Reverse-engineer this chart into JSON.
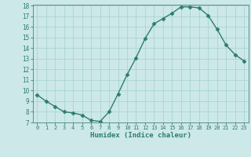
{
  "x": [
    0,
    1,
    2,
    3,
    4,
    5,
    6,
    7,
    8,
    9,
    10,
    11,
    12,
    13,
    14,
    15,
    16,
    17,
    18,
    19,
    20,
    21,
    22,
    23
  ],
  "y": [
    9.6,
    9.0,
    8.5,
    8.0,
    7.9,
    7.7,
    7.2,
    7.1,
    8.0,
    9.7,
    11.5,
    13.1,
    14.9,
    16.3,
    16.8,
    17.3,
    17.9,
    17.9,
    17.8,
    17.1,
    15.8,
    14.3,
    13.4,
    12.8
  ],
  "xlabel": "Humidex (Indice chaleur)",
  "ylim": [
    7,
    18
  ],
  "xlim": [
    -0.5,
    23.5
  ],
  "yticks": [
    7,
    8,
    9,
    10,
    11,
    12,
    13,
    14,
    15,
    16,
    17,
    18
  ],
  "xticks": [
    0,
    1,
    2,
    3,
    4,
    5,
    6,
    7,
    8,
    9,
    10,
    11,
    12,
    13,
    14,
    15,
    16,
    17,
    18,
    19,
    20,
    21,
    22,
    23
  ],
  "line_color": "#2e7d6e",
  "marker_color": "#2e7d6e",
  "bg_color": "#cce8e8",
  "grid_color": "#aad4d4",
  "axes_color": "#5a9090"
}
